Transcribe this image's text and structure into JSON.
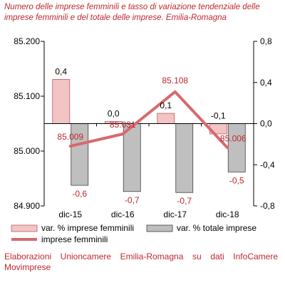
{
  "title": "Numero delle imprese femminili e tasso di variazione tendenziale delle imprese femminili e del totale delle imprese. Emilia-Romagna",
  "source": "Elaborazioni Unioncamere Emilia-Romagna su dati InfoCamere Movimprese",
  "colors": {
    "title": "#c0272d",
    "female_bar_fill": "#f2c4c4",
    "female_bar_stroke": "#b85c5c",
    "total_bar_fill": "#bfbfbf",
    "total_bar_stroke": "#404040",
    "line": "#d9686d",
    "line_label": "#c0272d",
    "axis": "#000000"
  },
  "chart_data": {
    "type": "bar-line-combo",
    "categories": [
      "dic-15",
      "dic-16",
      "dic-17",
      "dic-18"
    ],
    "left_axis": {
      "range": [
        84.9,
        85.2
      ],
      "ticks": [
        84.9,
        85.0,
        85.1,
        85.2
      ],
      "tick_labels": [
        "84.900",
        "85.000",
        "85.100",
        "85.200"
      ]
    },
    "right_axis": {
      "range": [
        -0.8,
        0.8
      ],
      "ticks": [
        -0.8,
        -0.4,
        0.0,
        0.4,
        0.8
      ],
      "tick_labels": [
        "-0,8",
        "-0,4",
        "0,0",
        "0,4",
        "0,8"
      ]
    },
    "series": [
      {
        "name": "var. % imprese femminili",
        "type": "bar",
        "axis": "right",
        "values": [
          0.43,
          0.02,
          0.1,
          -0.1
        ],
        "labels": [
          "0,4",
          "0,0",
          "0,1",
          "-0,1"
        ]
      },
      {
        "name": "var. % totale imprese",
        "type": "bar",
        "axis": "right",
        "values": [
          -0.6,
          -0.66,
          -0.67,
          -0.47
        ],
        "labels": [
          "-0,6",
          "-0,7",
          "-0,7",
          "-0,5"
        ]
      },
      {
        "name": "imprese femminili",
        "type": "line",
        "axis": "left",
        "values": [
          85.009,
          85.031,
          85.108,
          85.006
        ],
        "labels": [
          "85.009",
          "85.031",
          "85.108",
          "85.006"
        ]
      }
    ],
    "legend_position": "bottom",
    "grid": false
  }
}
